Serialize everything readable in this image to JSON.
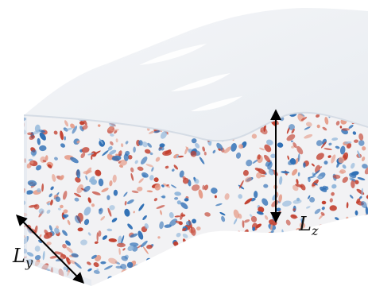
{
  "figure": {
    "labels": {
      "ly": {
        "main": "L",
        "sub": "y"
      },
      "lz": {
        "main": "L",
        "sub": "z"
      }
    },
    "colors": {
      "top_face": "#f1f3f6",
      "top_face_shade": "#e3e8ee",
      "front_face_base": "#f2f2f4",
      "positive": "#c2402f",
      "positive_light": "#e59a86",
      "negative": "#2f6fb5",
      "negative_light": "#8fb5da",
      "arrow": "#000000"
    }
  }
}
